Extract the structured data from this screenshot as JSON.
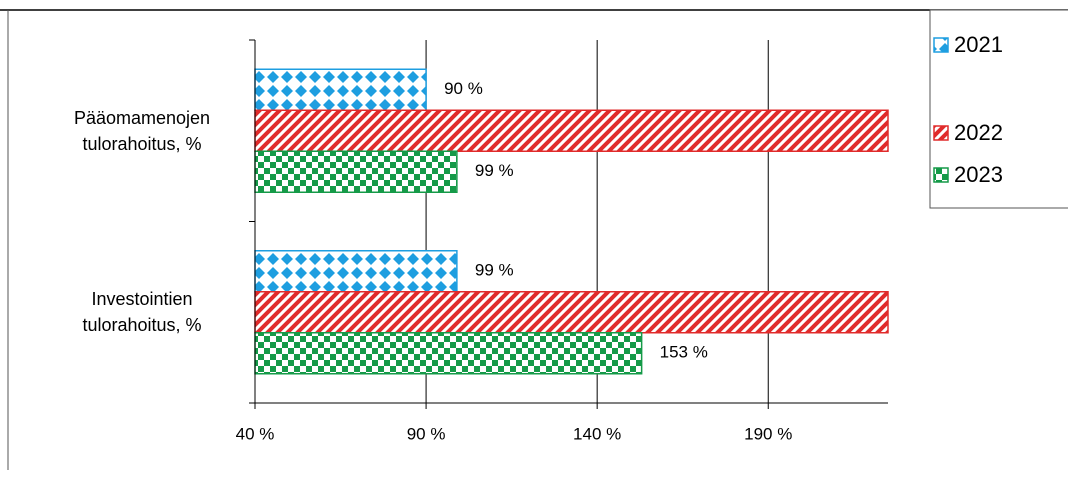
{
  "chart_data": {
    "type": "bar",
    "orientation": "horizontal",
    "categories": [
      "Pääomamenojen tulorahoitus, %",
      "Investointien tulorahoitus, %"
    ],
    "series": [
      {
        "name": "2021",
        "color": "#1e9ee0",
        "pattern": "diamond",
        "values": [
          90,
          99
        ],
        "value_labels": [
          "90 %",
          "99 %"
        ]
      },
      {
        "name": "2022",
        "color": "#e02b2b",
        "pattern": "stripes",
        "values": [
          225,
          225
        ]
      },
      {
        "name": "2023",
        "color": "#159a48",
        "pattern": "checker",
        "values": [
          99,
          153
        ],
        "value_labels": [
          "99 %",
          "153 %"
        ]
      }
    ],
    "xlim": [
      40,
      225
    ],
    "xticks": [
      {
        "value": 40,
        "label": "40 %"
      },
      {
        "value": 90,
        "label": "90 %"
      },
      {
        "value": 140,
        "label": "140 %"
      },
      {
        "value": 190,
        "label": "190 %"
      }
    ],
    "grid": true,
    "legend": "top-right"
  }
}
